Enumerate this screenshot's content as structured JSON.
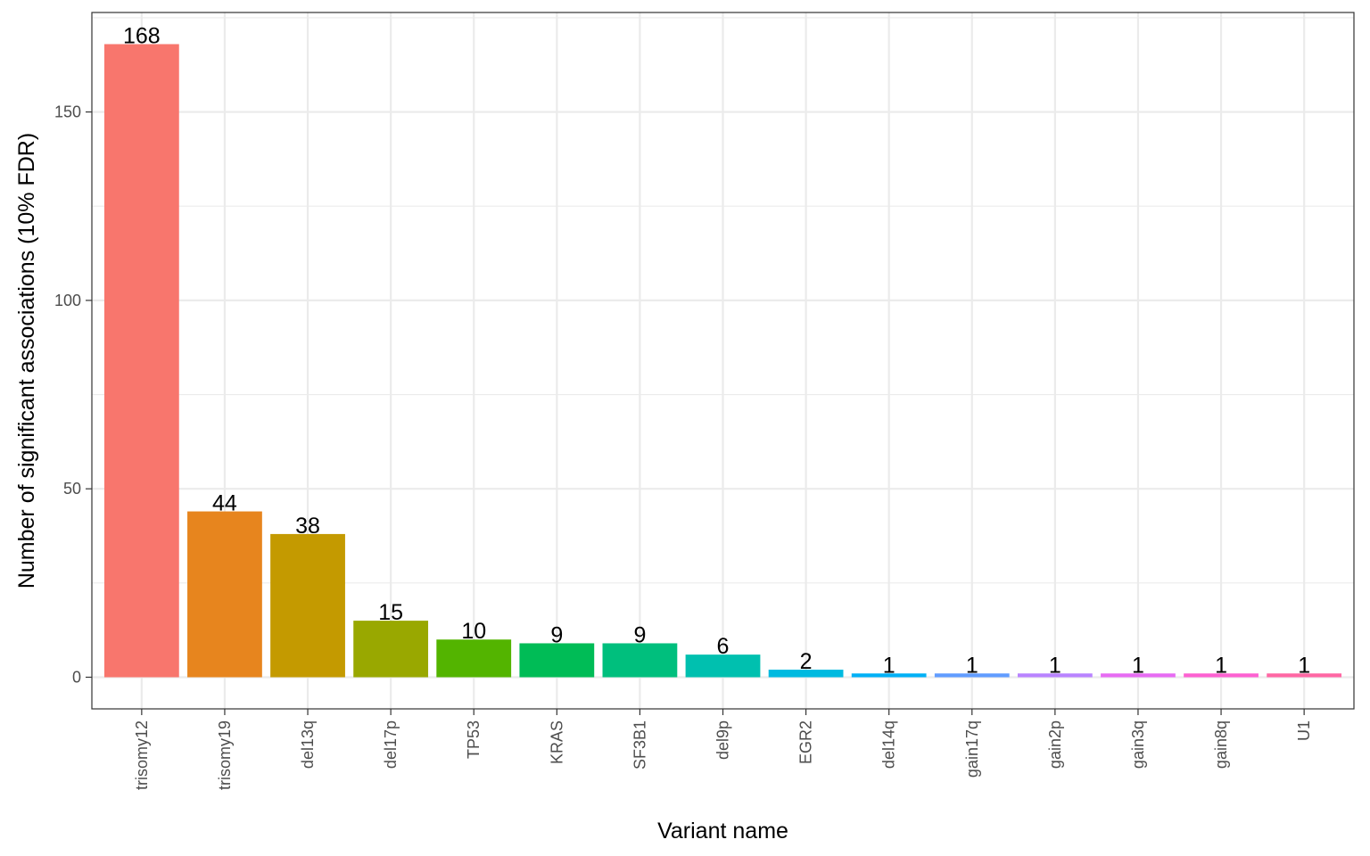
{
  "chart_data": {
    "type": "bar",
    "title": "",
    "xlabel": "Variant name",
    "ylabel": "Number of significant associations (10% FDR)",
    "categories": [
      "trisomy12",
      "trisomy19",
      "del13q",
      "del17p",
      "TP53",
      "KRAS",
      "SF3B1",
      "del9p",
      "EGR2",
      "del14q",
      "gain17q",
      "gain2p",
      "gain3q",
      "gain8q",
      "U1"
    ],
    "values": [
      168,
      44,
      38,
      15,
      10,
      9,
      9,
      6,
      2,
      1,
      1,
      1,
      1,
      1,
      1
    ],
    "colors": [
      "#F8766D",
      "#E7851E",
      "#C49A00",
      "#99A800",
      "#53B400",
      "#00BC56",
      "#00BF7D",
      "#00C0AF",
      "#00BAE0",
      "#00B0F6",
      "#619CFF",
      "#B983FF",
      "#E76BF3",
      "#FD61D1",
      "#FF67A4"
    ],
    "ylim": [
      -8.4,
      176.4
    ],
    "yticks": [
      0,
      50,
      100,
      150
    ],
    "grid": true,
    "legend": "none"
  }
}
